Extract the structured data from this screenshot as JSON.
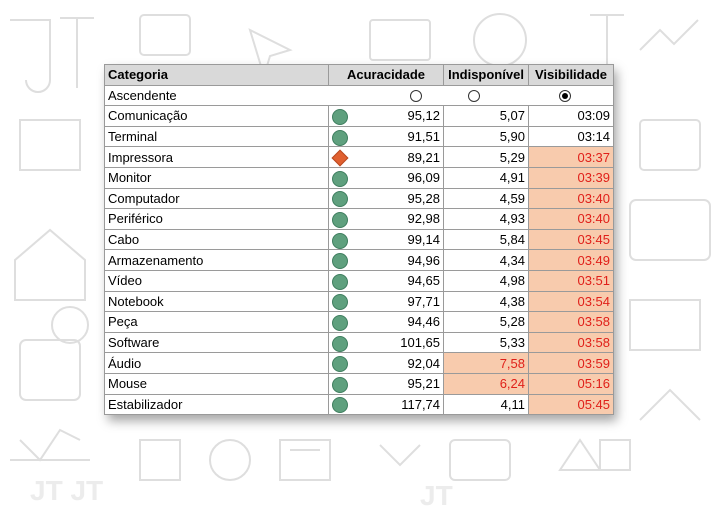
{
  "sort_label": "Ascendente",
  "sort_options": [
    {
      "name": "option-1",
      "checked": false
    },
    {
      "name": "option-2",
      "checked": false
    },
    {
      "name": "option-3",
      "checked": true
    }
  ],
  "headers": {
    "category": "Categoria",
    "accuracy": "Acuracidade",
    "unavailable": "Indisponível",
    "visibility": "Visibilidade"
  },
  "colors": {
    "highlight_fill": "#f8cbad",
    "highlight_text": "#e0201a",
    "good": "#5fa07e",
    "warn": "#e06030"
  },
  "rows": [
    {
      "category": "Comunicação",
      "indicator": "circle",
      "accuracy": "95,12",
      "unavailable": "5,07",
      "visibility": "03:09",
      "hl_unavailable": false,
      "hl_visibility": false
    },
    {
      "category": "Terminal",
      "indicator": "circle",
      "accuracy": "91,51",
      "unavailable": "5,90",
      "visibility": "03:14",
      "hl_unavailable": false,
      "hl_visibility": false
    },
    {
      "category": "Impressora",
      "indicator": "diamond",
      "accuracy": "89,21",
      "unavailable": "5,29",
      "visibility": "03:37",
      "hl_unavailable": false,
      "hl_visibility": true
    },
    {
      "category": "Monitor",
      "indicator": "circle",
      "accuracy": "96,09",
      "unavailable": "4,91",
      "visibility": "03:39",
      "hl_unavailable": false,
      "hl_visibility": true
    },
    {
      "category": "Computador",
      "indicator": "circle",
      "accuracy": "95,28",
      "unavailable": "4,59",
      "visibility": "03:40",
      "hl_unavailable": false,
      "hl_visibility": true
    },
    {
      "category": "Periférico",
      "indicator": "circle",
      "accuracy": "92,98",
      "unavailable": "4,93",
      "visibility": "03:40",
      "hl_unavailable": false,
      "hl_visibility": true
    },
    {
      "category": "Cabo",
      "indicator": "circle",
      "accuracy": "99,14",
      "unavailable": "5,84",
      "visibility": "03:45",
      "hl_unavailable": false,
      "hl_visibility": true
    },
    {
      "category": "Armazenamento",
      "indicator": "circle",
      "accuracy": "94,96",
      "unavailable": "4,34",
      "visibility": "03:49",
      "hl_unavailable": false,
      "hl_visibility": true
    },
    {
      "category": "Vídeo",
      "indicator": "circle",
      "accuracy": "94,65",
      "unavailable": "4,98",
      "visibility": "03:51",
      "hl_unavailable": false,
      "hl_visibility": true
    },
    {
      "category": "Notebook",
      "indicator": "circle",
      "accuracy": "97,71",
      "unavailable": "4,38",
      "visibility": "03:54",
      "hl_unavailable": false,
      "hl_visibility": true
    },
    {
      "category": "Peça",
      "indicator": "circle",
      "accuracy": "94,46",
      "unavailable": "5,28",
      "visibility": "03:58",
      "hl_unavailable": false,
      "hl_visibility": true
    },
    {
      "category": "Software",
      "indicator": "circle",
      "accuracy": "101,65",
      "unavailable": "5,33",
      "visibility": "03:58",
      "hl_unavailable": false,
      "hl_visibility": true
    },
    {
      "category": "Áudio",
      "indicator": "circle",
      "accuracy": "92,04",
      "unavailable": "7,58",
      "visibility": "03:59",
      "hl_unavailable": true,
      "hl_visibility": true
    },
    {
      "category": "Mouse",
      "indicator": "circle",
      "accuracy": "95,21",
      "unavailable": "6,24",
      "visibility": "05:16",
      "hl_unavailable": true,
      "hl_visibility": true
    },
    {
      "category": "Estabilizador",
      "indicator": "circle",
      "accuracy": "117,74",
      "unavailable": "4,11",
      "visibility": "05:45",
      "hl_unavailable": false,
      "hl_visibility": true
    }
  ]
}
